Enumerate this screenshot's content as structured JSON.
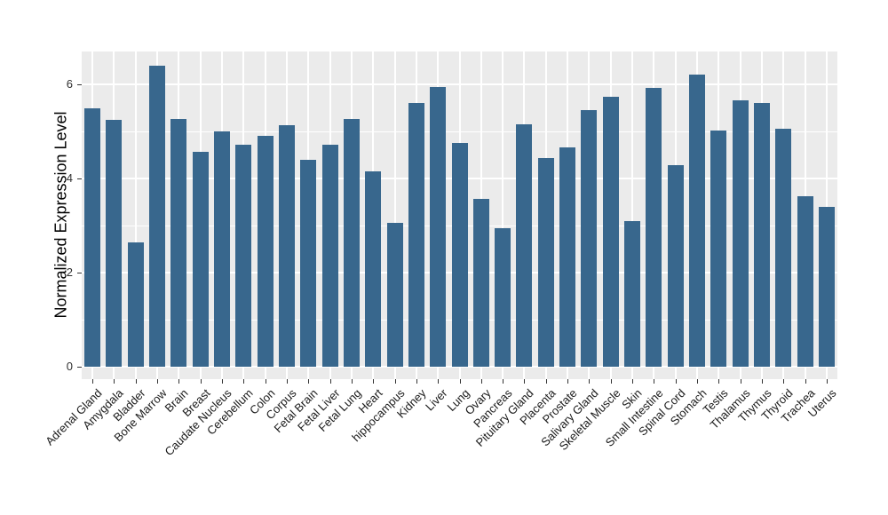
{
  "chart_data": {
    "type": "bar",
    "title": "",
    "xlabel": "",
    "ylabel": "Normalized Expression Level",
    "ylim": [
      0,
      6.96
    ],
    "yticks": [
      0,
      2,
      4,
      6
    ],
    "yticks_minor": [
      1,
      3,
      5
    ],
    "legend": "none",
    "grid": "white major and minor horizontal lines, white vertical lines at category centers, on gray panel",
    "bar_color": "#38678D",
    "panel_color": "#EBEBEB",
    "gridline_color": "#FFFFFF",
    "categories": [
      "Adrenal Gland",
      "Amygdala",
      "Bladder",
      "Bone Marrow",
      "Brain",
      "Breast",
      "Caudate Nucleus",
      "Cerebellum",
      "Colon",
      "Corpus",
      "Fetal Brain",
      "Fetal Liver",
      "Fetal Lung",
      "Heart",
      "hippocampus",
      "Kidney",
      "Liver",
      "Lung",
      "Ovary",
      "Pancreas",
      "Pituitary Gland",
      "Placenta",
      "Prostate",
      "Salivary Gland",
      "Skeletal Muscle",
      "Skin",
      "Small Intestine",
      "Spinal Cord",
      "Stomach",
      "Testis",
      "Thalamus",
      "Thymus",
      "Thyroid",
      "Trachea",
      "Uterus"
    ],
    "values": [
      5.5,
      5.24,
      2.64,
      6.4,
      5.27,
      4.56,
      5.0,
      4.71,
      4.91,
      5.13,
      4.4,
      4.71,
      5.26,
      4.16,
      3.05,
      5.6,
      5.94,
      4.76,
      3.57,
      2.94,
      5.15,
      4.44,
      4.66,
      5.45,
      5.73,
      3.1,
      5.92,
      4.28,
      6.2,
      5.01,
      5.66,
      5.6,
      5.06,
      3.62,
      3.4
    ]
  }
}
